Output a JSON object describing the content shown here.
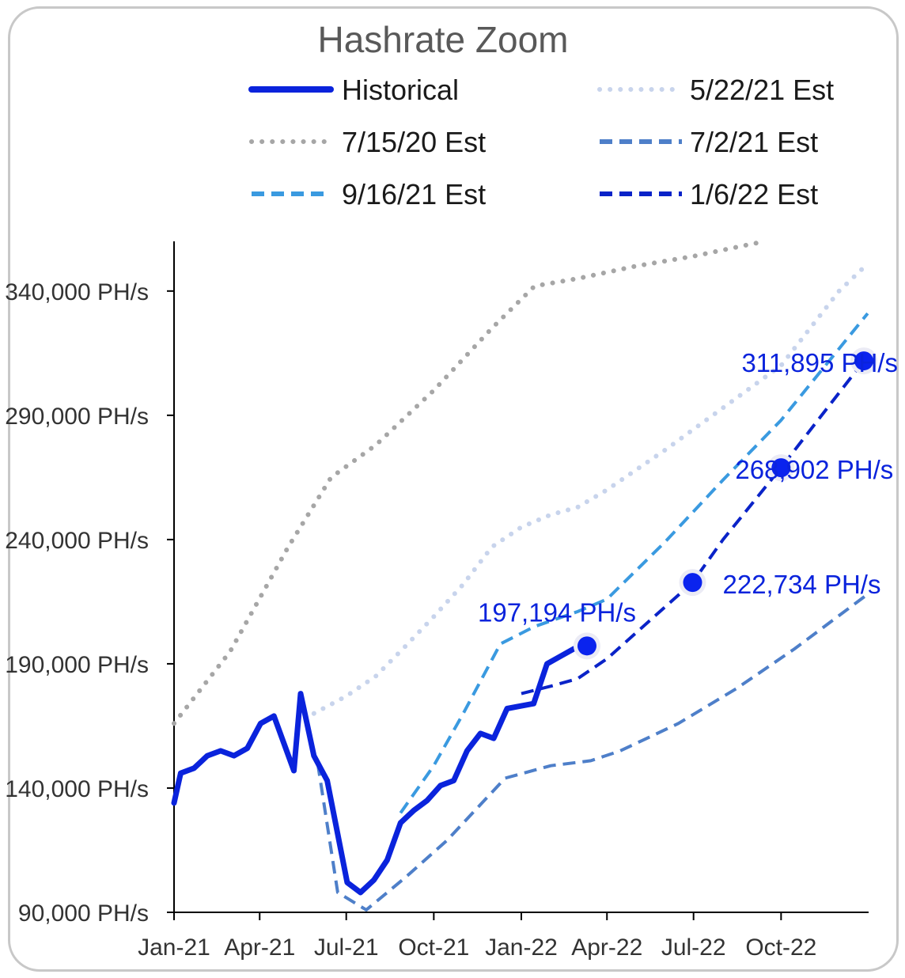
{
  "chart_data": {
    "type": "line",
    "title": "Hashrate Zoom",
    "xlabel": "",
    "ylabel": "",
    "x_ticks": [
      "Jan-21",
      "Apr-21",
      "Jul-21",
      "Oct-21",
      "Jan-22",
      "Apr-22",
      "Jul-22",
      "Oct-22"
    ],
    "y_ticks": [
      "90,000 PH/s",
      "140,000 PH/s",
      "190,000 PH/s",
      "240,000 PH/s",
      "290,000 PH/s",
      "340,000 PH/s"
    ],
    "ylim": [
      90000,
      360000
    ],
    "xlim": [
      "2021-01-01",
      "2023-01-01"
    ],
    "grid": false,
    "legend_position": "top",
    "series": [
      {
        "name": "Historical",
        "color": "#0a23dc",
        "style": "solid",
        "points": [
          [
            "2021-01-01",
            134000
          ],
          [
            "2021-01-08",
            146000
          ],
          [
            "2021-01-22",
            148000
          ],
          [
            "2021-02-05",
            153000
          ],
          [
            "2021-02-19",
            155000
          ],
          [
            "2021-03-05",
            153000
          ],
          [
            "2021-03-19",
            156000
          ],
          [
            "2021-04-02",
            166000
          ],
          [
            "2021-04-16",
            169000
          ],
          [
            "2021-05-07",
            147000
          ],
          [
            "2021-05-14",
            178000
          ],
          [
            "2021-05-28",
            153000
          ],
          [
            "2021-06-11",
            143000
          ],
          [
            "2021-07-02",
            102000
          ],
          [
            "2021-07-16",
            98000
          ],
          [
            "2021-07-30",
            103000
          ],
          [
            "2021-08-13",
            111000
          ],
          [
            "2021-08-27",
            126000
          ],
          [
            "2021-09-10",
            131000
          ],
          [
            "2021-09-24",
            135000
          ],
          [
            "2021-10-08",
            141000
          ],
          [
            "2021-10-22",
            143000
          ],
          [
            "2021-11-05",
            155000
          ],
          [
            "2021-11-19",
            162000
          ],
          [
            "2021-12-03",
            160000
          ],
          [
            "2021-12-17",
            172000
          ],
          [
            "2021-12-31",
            173000
          ],
          [
            "2022-01-14",
            174000
          ],
          [
            "2022-01-28",
            190000
          ],
          [
            "2022-02-11",
            193000
          ],
          [
            "2022-02-25",
            196000
          ],
          [
            "2022-03-11",
            197194
          ]
        ]
      },
      {
        "name": "5/22/21 Est",
        "color": "#c8d4ec",
        "style": "dotted",
        "points": [
          [
            "2021-05-28",
            170000
          ],
          [
            "2021-07-01",
            177000
          ],
          [
            "2021-08-01",
            185000
          ],
          [
            "2021-09-01",
            197000
          ],
          [
            "2021-10-01",
            209000
          ],
          [
            "2021-11-01",
            222000
          ],
          [
            "2021-12-01",
            237000
          ],
          [
            "2022-01-01",
            245000
          ],
          [
            "2022-02-01",
            250000
          ],
          [
            "2022-03-01",
            253000
          ],
          [
            "2022-04-01",
            260000
          ],
          [
            "2022-06-01",
            276000
          ],
          [
            "2022-08-01",
            293000
          ],
          [
            "2022-10-01",
            310000
          ],
          [
            "2022-12-01",
            340000
          ],
          [
            "2022-12-31",
            351000
          ]
        ]
      },
      {
        "name": "7/15/20 Est",
        "color": "#a6a6a6",
        "style": "dotted",
        "points": [
          [
            "2021-01-01",
            166000
          ],
          [
            "2021-03-01",
            195000
          ],
          [
            "2021-05-01",
            237000
          ],
          [
            "2021-06-15",
            265000
          ],
          [
            "2021-08-01",
            278000
          ],
          [
            "2021-10-01",
            300000
          ],
          [
            "2021-12-01",
            325000
          ],
          [
            "2022-01-15",
            342000
          ],
          [
            "2022-03-01",
            345000
          ],
          [
            "2022-05-01",
            350000
          ],
          [
            "2022-07-01",
            354000
          ],
          [
            "2022-09-01",
            359000
          ],
          [
            "2022-09-15",
            360000
          ]
        ]
      },
      {
        "name": "7/2/21 Est",
        "color": "#4e7fc9",
        "style": "dashed",
        "points": [
          [
            "2021-06-01",
            150000
          ],
          [
            "2021-06-22",
            98000
          ],
          [
            "2021-07-22",
            91000
          ],
          [
            "2021-09-01",
            104000
          ],
          [
            "2021-10-15",
            119000
          ],
          [
            "2021-12-15",
            144000
          ],
          [
            "2022-02-01",
            149000
          ],
          [
            "2022-03-15",
            151000
          ],
          [
            "2022-04-15",
            155000
          ],
          [
            "2022-06-15",
            166000
          ],
          [
            "2022-08-15",
            180000
          ],
          [
            "2022-10-15",
            196000
          ],
          [
            "2022-12-31",
            218000
          ]
        ]
      },
      {
        "name": "9/16/21 Est",
        "color": "#3a9ae0",
        "style": "dashed",
        "points": [
          [
            "2021-08-27",
            130000
          ],
          [
            "2021-10-01",
            149000
          ],
          [
            "2021-11-01",
            170000
          ],
          [
            "2021-12-10",
            198000
          ],
          [
            "2022-01-15",
            205000
          ],
          [
            "2022-03-01",
            211000
          ],
          [
            "2022-04-01",
            216000
          ],
          [
            "2022-06-01",
            239000
          ],
          [
            "2022-08-01",
            264000
          ],
          [
            "2022-10-01",
            288000
          ],
          [
            "2022-12-31",
            331000
          ]
        ]
      },
      {
        "name": "1/6/22 Est",
        "color": "#0a23c8",
        "style": "dashed",
        "points": [
          [
            "2022-01-01",
            178000
          ],
          [
            "2022-02-01",
            181000
          ],
          [
            "2022-03-01",
            184000
          ],
          [
            "2022-04-01",
            192000
          ],
          [
            "2022-06-30",
            222734
          ],
          [
            "2022-08-01",
            240000
          ],
          [
            "2022-10-01",
            268902
          ],
          [
            "2022-12-27",
            311895
          ],
          [
            "2022-12-31",
            313500
          ]
        ]
      }
    ],
    "markers": [
      {
        "x": "2022-03-11",
        "y": 197194,
        "label": "197,194 PH/s",
        "label_side": "above"
      },
      {
        "x": "2022-06-30",
        "y": 222734,
        "label": "222,734 PH/s",
        "label_side": "right"
      },
      {
        "x": "2022-10-01",
        "y": 268902,
        "label": "268,902 PH/s",
        "label_side": "right"
      },
      {
        "x": "2022-12-27",
        "y": 311895,
        "label": "311,895 PH/s",
        "label_side": "left"
      }
    ]
  }
}
